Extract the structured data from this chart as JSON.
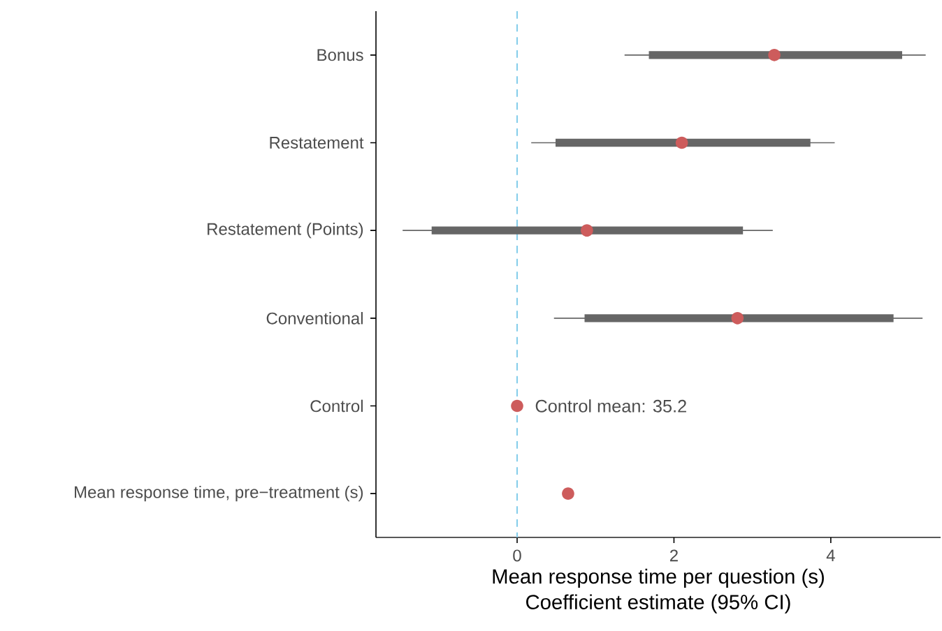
{
  "chart_data": {
    "type": "scatter",
    "orientation": "horizontal",
    "xlabel": "Mean response time per question (s)",
    "categories": [
      "Bonus",
      "Restatement",
      "Restatement (Points)",
      "Conventional",
      "Control",
      "Mean response time, pre−treatment (s)"
    ],
    "series": [
      {
        "type": "bar",
        "color": "#666666",
        "base": [
          1.68,
          0.49,
          -1.09,
          0.86,
          null,
          null
        ],
        "values": [
          3.23,
          3.25,
          3.97,
          3.94,
          null,
          null
        ]
      },
      {
        "color": "#cd5c5c",
        "values": [
          3.28,
          2.1,
          0.89,
          2.81,
          0,
          0.65
        ],
        "errors": [
          [
            1.37,
            5.21
          ],
          [
            0.18,
            4.05
          ],
          [
            -1.46,
            3.26
          ],
          [
            0.47,
            5.17
          ],
          null,
          null
        ]
      }
    ],
    "marker": "circle",
    "xlim": [
      -1.8,
      5.4
    ],
    "xticks": [
      0,
      2,
      4
    ],
    "ref_lines": [
      {
        "axis": "x",
        "value": 0,
        "color": "#87ceeb",
        "line_style": "dashed"
      }
    ],
    "annotations": [
      {
        "text": "Control mean: 35.2",
        "x": 0,
        "y": "Control"
      },
      "Coefficient estimate (95% CI)"
    ]
  }
}
